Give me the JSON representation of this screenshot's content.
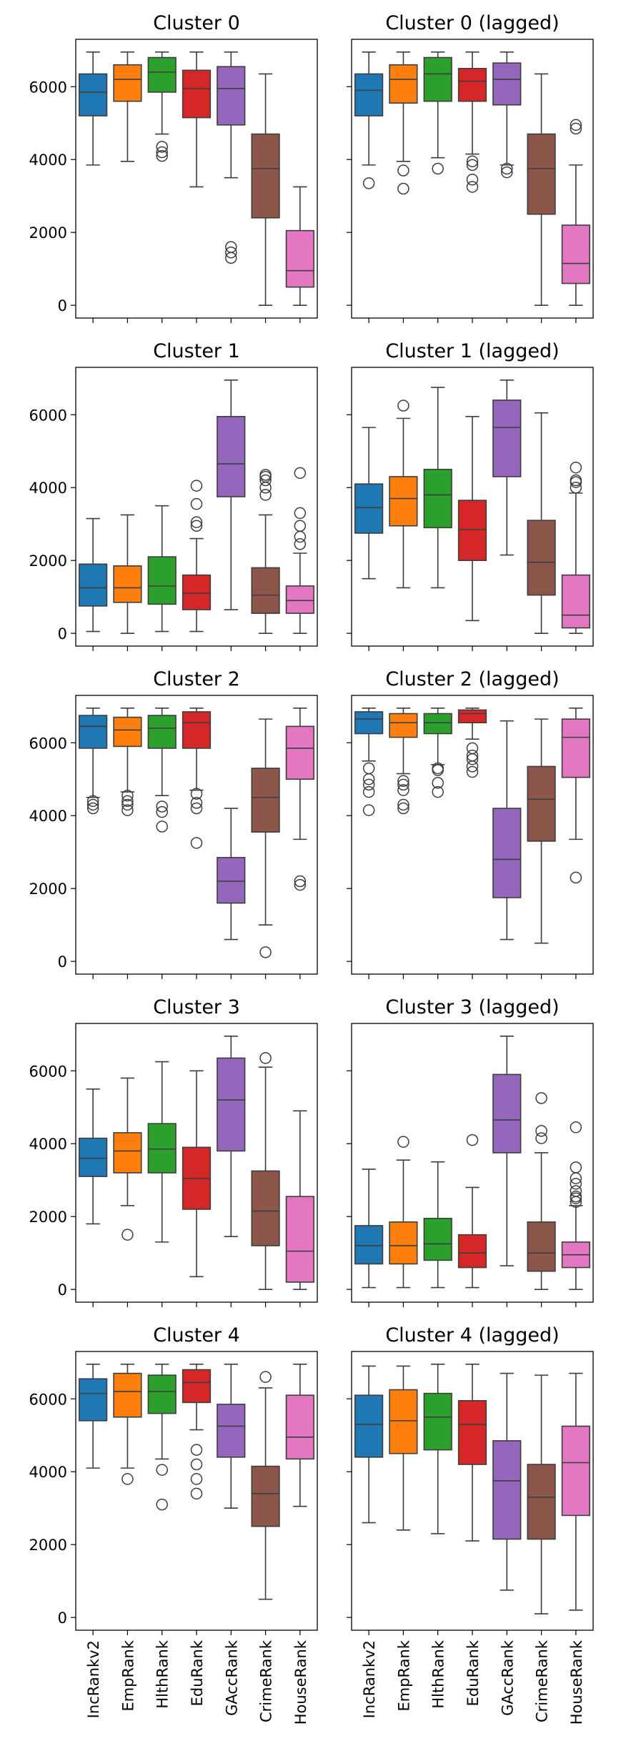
{
  "figure": {
    "categories": [
      "IncRankv2",
      "EmpRank",
      "HlthRank",
      "EduRank",
      "GAccRank",
      "CrimeRank",
      "HouseRank"
    ],
    "colors": [
      "#1f77b4",
      "#ff7f0e",
      "#2ca02c",
      "#d62728",
      "#9467bd",
      "#8c564b",
      "#e377c2"
    ],
    "y_ticks": [
      0,
      2000,
      4000,
      6000
    ],
    "ylim": [
      -350,
      7300
    ],
    "shared_y_per_row": true
  },
  "chart_data": [
    {
      "type": "box",
      "title": "Cluster 0",
      "boxes": [
        {
          "whislo": 3850,
          "q1": 5200,
          "med": 5850,
          "q3": 6350,
          "whishi": 6950,
          "fliers": []
        },
        {
          "whislo": 3950,
          "q1": 5600,
          "med": 6200,
          "q3": 6600,
          "whishi": 6950,
          "fliers": []
        },
        {
          "whislo": 4700,
          "q1": 5850,
          "med": 6400,
          "q3": 6800,
          "whishi": 6950,
          "fliers": [
            4100,
            4200,
            4350
          ]
        },
        {
          "whislo": 3250,
          "q1": 5150,
          "med": 5950,
          "q3": 6450,
          "whishi": 6950,
          "fliers": []
        },
        {
          "whislo": 3500,
          "q1": 4950,
          "med": 5950,
          "q3": 6550,
          "whishi": 6950,
          "fliers": [
            1300,
            1450,
            1600
          ]
        },
        {
          "whislo": 0,
          "q1": 2400,
          "med": 3750,
          "q3": 4700,
          "whishi": 6350,
          "fliers": []
        },
        {
          "whislo": 0,
          "q1": 500,
          "med": 950,
          "q3": 2050,
          "whishi": 3250,
          "fliers": []
        }
      ]
    },
    {
      "type": "box",
      "title": "Cluster 0 (lagged)",
      "boxes": [
        {
          "whislo": 3850,
          "q1": 5200,
          "med": 5900,
          "q3": 6350,
          "whishi": 6950,
          "fliers": [
            3350
          ]
        },
        {
          "whislo": 3950,
          "q1": 5550,
          "med": 6200,
          "q3": 6600,
          "whishi": 6950,
          "fliers": [
            3200,
            3700
          ]
        },
        {
          "whislo": 4050,
          "q1": 5600,
          "med": 6350,
          "q3": 6800,
          "whishi": 6950,
          "fliers": [
            3750
          ]
        },
        {
          "whislo": 4150,
          "q1": 5600,
          "med": 6150,
          "q3": 6500,
          "whishi": 6950,
          "fliers": [
            3250,
            3450,
            3850,
            3950
          ]
        },
        {
          "whislo": 3850,
          "q1": 5500,
          "med": 6200,
          "q3": 6650,
          "whishi": 6950,
          "fliers": [
            3650,
            3750
          ]
        },
        {
          "whislo": 0,
          "q1": 2500,
          "med": 3750,
          "q3": 4700,
          "whishi": 6350,
          "fliers": []
        },
        {
          "whislo": 0,
          "q1": 600,
          "med": 1150,
          "q3": 2200,
          "whishi": 3850,
          "fliers": [
            4850,
            4950
          ]
        }
      ]
    },
    {
      "type": "box",
      "title": "Cluster 1",
      "boxes": [
        {
          "whislo": 50,
          "q1": 750,
          "med": 1250,
          "q3": 1900,
          "whishi": 3150,
          "fliers": []
        },
        {
          "whislo": 0,
          "q1": 850,
          "med": 1250,
          "q3": 1850,
          "whishi": 3250,
          "fliers": []
        },
        {
          "whislo": 50,
          "q1": 800,
          "med": 1300,
          "q3": 2100,
          "whishi": 3500,
          "fliers": []
        },
        {
          "whislo": 50,
          "q1": 650,
          "med": 1100,
          "q3": 1600,
          "whishi": 2600,
          "fliers": [
            2950,
            3050,
            3550,
            4050
          ]
        },
        {
          "whislo": 650,
          "q1": 3750,
          "med": 4650,
          "q3": 5950,
          "whishi": 6950,
          "fliers": []
        },
        {
          "whislo": 0,
          "q1": 550,
          "med": 1050,
          "q3": 1800,
          "whishi": 3250,
          "fliers": [
            3800,
            4000,
            4200,
            4300,
            4350
          ]
        },
        {
          "whislo": 0,
          "q1": 550,
          "med": 900,
          "q3": 1300,
          "whishi": 2200,
          "fliers": [
            2450,
            2650,
            2950,
            3300,
            4400
          ]
        }
      ]
    },
    {
      "type": "box",
      "title": "Cluster 1 (lagged)",
      "boxes": [
        {
          "whislo": 1500,
          "q1": 2750,
          "med": 3450,
          "q3": 4100,
          "whishi": 5650,
          "fliers": []
        },
        {
          "whislo": 1250,
          "q1": 2950,
          "med": 3700,
          "q3": 4300,
          "whishi": 5900,
          "fliers": [
            6250
          ]
        },
        {
          "whislo": 1250,
          "q1": 2900,
          "med": 3800,
          "q3": 4500,
          "whishi": 6750,
          "fliers": []
        },
        {
          "whislo": 350,
          "q1": 2000,
          "med": 2850,
          "q3": 3650,
          "whishi": 5950,
          "fliers": []
        },
        {
          "whislo": 2150,
          "q1": 4300,
          "med": 5650,
          "q3": 6400,
          "whishi": 6950,
          "fliers": []
        },
        {
          "whislo": 0,
          "q1": 1050,
          "med": 1950,
          "q3": 3100,
          "whishi": 6050,
          "fliers": []
        },
        {
          "whislo": 0,
          "q1": 150,
          "med": 500,
          "q3": 1600,
          "whishi": 3850,
          "fliers": [
            4000,
            4150,
            4200,
            4550
          ]
        }
      ]
    },
    {
      "type": "box",
      "title": "Cluster 2",
      "boxes": [
        {
          "whislo": 4500,
          "q1": 5850,
          "med": 6450,
          "q3": 6750,
          "whishi": 6950,
          "fliers": [
            4200,
            4300,
            4400
          ]
        },
        {
          "whislo": 4650,
          "q1": 5900,
          "med": 6350,
          "q3": 6700,
          "whishi": 6950,
          "fliers": [
            4150,
            4300,
            4400,
            4550
          ]
        },
        {
          "whislo": 4550,
          "q1": 5850,
          "med": 6400,
          "q3": 6750,
          "whishi": 6950,
          "fliers": [
            3700,
            4100,
            4250
          ]
        },
        {
          "whislo": 4700,
          "q1": 5850,
          "med": 6550,
          "q3": 6850,
          "whishi": 6950,
          "fliers": [
            3250,
            4200,
            4350,
            4600
          ]
        },
        {
          "whislo": 600,
          "q1": 1600,
          "med": 2200,
          "q3": 2850,
          "whishi": 4200,
          "fliers": []
        },
        {
          "whislo": 1000,
          "q1": 3550,
          "med": 4500,
          "q3": 5300,
          "whishi": 6650,
          "fliers": [
            250
          ]
        },
        {
          "whislo": 3350,
          "q1": 5000,
          "med": 5850,
          "q3": 6450,
          "whishi": 6950,
          "fliers": [
            2100,
            2200
          ]
        }
      ]
    },
    {
      "type": "box",
      "title": "Cluster 2 (lagged)",
      "boxes": [
        {
          "whislo": 5500,
          "q1": 6250,
          "med": 6650,
          "q3": 6850,
          "whishi": 6950,
          "fliers": [
            4150,
            4650,
            4850,
            5000,
            5300
          ]
        },
        {
          "whislo": 5150,
          "q1": 6150,
          "med": 6550,
          "q3": 6800,
          "whishi": 6950,
          "fliers": [
            4200,
            4300,
            4700,
            4850,
            4950
          ]
        },
        {
          "whislo": 5400,
          "q1": 6250,
          "med": 6550,
          "q3": 6800,
          "whishi": 6950,
          "fliers": [
            4650,
            4900,
            5250,
            5300
          ]
        },
        {
          "whislo": 6100,
          "q1": 6550,
          "med": 6800,
          "q3": 6900,
          "whishi": 6950,
          "fliers": [
            5200,
            5350,
            5550,
            5650,
            5850
          ]
        },
        {
          "whislo": 600,
          "q1": 1750,
          "med": 2800,
          "q3": 4200,
          "whishi": 6600,
          "fliers": []
        },
        {
          "whislo": 500,
          "q1": 3300,
          "med": 4450,
          "q3": 5350,
          "whishi": 6650,
          "fliers": []
        },
        {
          "whislo": 3350,
          "q1": 5050,
          "med": 6150,
          "q3": 6650,
          "whishi": 6950,
          "fliers": [
            2300
          ]
        }
      ]
    },
    {
      "type": "box",
      "title": "Cluster 3",
      "boxes": [
        {
          "whislo": 1800,
          "q1": 3100,
          "med": 3600,
          "q3": 4150,
          "whishi": 5500,
          "fliers": []
        },
        {
          "whislo": 2300,
          "q1": 3200,
          "med": 3800,
          "q3": 4300,
          "whishi": 5800,
          "fliers": [
            1500
          ]
        },
        {
          "whislo": 1300,
          "q1": 3200,
          "med": 3850,
          "q3": 4550,
          "whishi": 6250,
          "fliers": []
        },
        {
          "whislo": 350,
          "q1": 2200,
          "med": 3050,
          "q3": 3900,
          "whishi": 6000,
          "fliers": []
        },
        {
          "whislo": 1450,
          "q1": 3800,
          "med": 5200,
          "q3": 6350,
          "whishi": 6950,
          "fliers": []
        },
        {
          "whislo": 0,
          "q1": 1200,
          "med": 2150,
          "q3": 3250,
          "whishi": 6100,
          "fliers": [
            6350
          ]
        },
        {
          "whislo": 0,
          "q1": 200,
          "med": 1050,
          "q3": 2550,
          "whishi": 4900,
          "fliers": []
        }
      ]
    },
    {
      "type": "box",
      "title": "Cluster 3 (lagged)",
      "boxes": [
        {
          "whislo": 50,
          "q1": 700,
          "med": 1200,
          "q3": 1750,
          "whishi": 3300,
          "fliers": []
        },
        {
          "whislo": 50,
          "q1": 700,
          "med": 1200,
          "q3": 1850,
          "whishi": 3550,
          "fliers": [
            4050
          ]
        },
        {
          "whislo": 50,
          "q1": 800,
          "med": 1250,
          "q3": 1950,
          "whishi": 3500,
          "fliers": []
        },
        {
          "whislo": 50,
          "q1": 600,
          "med": 1000,
          "q3": 1500,
          "whishi": 2800,
          "fliers": [
            4100
          ]
        },
        {
          "whislo": 650,
          "q1": 3750,
          "med": 4650,
          "q3": 5900,
          "whishi": 6950,
          "fliers": []
        },
        {
          "whislo": 0,
          "q1": 500,
          "med": 1000,
          "q3": 1850,
          "whishi": 3750,
          "fliers": [
            4150,
            4350,
            5250
          ]
        },
        {
          "whislo": 0,
          "q1": 600,
          "med": 950,
          "q3": 1300,
          "whishi": 2300,
          "fliers": [
            2400,
            2500,
            2550,
            2700,
            2900,
            3050,
            3350,
            4450
          ]
        }
      ]
    },
    {
      "type": "box",
      "title": "Cluster 4",
      "boxes": [
        {
          "whislo": 4100,
          "q1": 5400,
          "med": 6150,
          "q3": 6550,
          "whishi": 6950,
          "fliers": []
        },
        {
          "whislo": 4100,
          "q1": 5500,
          "med": 6200,
          "q3": 6700,
          "whishi": 6950,
          "fliers": [
            3800
          ]
        },
        {
          "whislo": 4350,
          "q1": 5600,
          "med": 6200,
          "q3": 6650,
          "whishi": 6950,
          "fliers": [
            3100,
            4050
          ]
        },
        {
          "whislo": 5150,
          "q1": 5900,
          "med": 6450,
          "q3": 6800,
          "whishi": 6950,
          "fliers": [
            3400,
            3800,
            4200,
            4600
          ]
        },
        {
          "whislo": 3000,
          "q1": 4400,
          "med": 5250,
          "q3": 5850,
          "whishi": 6950,
          "fliers": []
        },
        {
          "whislo": 500,
          "q1": 2500,
          "med": 3400,
          "q3": 4150,
          "whishi": 6300,
          "fliers": [
            6600
          ]
        },
        {
          "whislo": 3050,
          "q1": 4350,
          "med": 4950,
          "q3": 6100,
          "whishi": 6950,
          "fliers": []
        }
      ]
    },
    {
      "type": "box",
      "title": "Cluster 4 (lagged)",
      "boxes": [
        {
          "whislo": 2600,
          "q1": 4400,
          "med": 5300,
          "q3": 6100,
          "whishi": 6900,
          "fliers": []
        },
        {
          "whislo": 2400,
          "q1": 4500,
          "med": 5400,
          "q3": 6250,
          "whishi": 6900,
          "fliers": []
        },
        {
          "whislo": 2300,
          "q1": 4600,
          "med": 5500,
          "q3": 6150,
          "whishi": 6950,
          "fliers": []
        },
        {
          "whislo": 2100,
          "q1": 4200,
          "med": 5300,
          "q3": 5950,
          "whishi": 6950,
          "fliers": []
        },
        {
          "whislo": 750,
          "q1": 2150,
          "med": 3750,
          "q3": 4850,
          "whishi": 6700,
          "fliers": []
        },
        {
          "whislo": 100,
          "q1": 2150,
          "med": 3300,
          "q3": 4200,
          "whishi": 6650,
          "fliers": []
        },
        {
          "whislo": 200,
          "q1": 2800,
          "med": 4250,
          "q3": 5250,
          "whishi": 6700,
          "fliers": []
        }
      ]
    }
  ]
}
